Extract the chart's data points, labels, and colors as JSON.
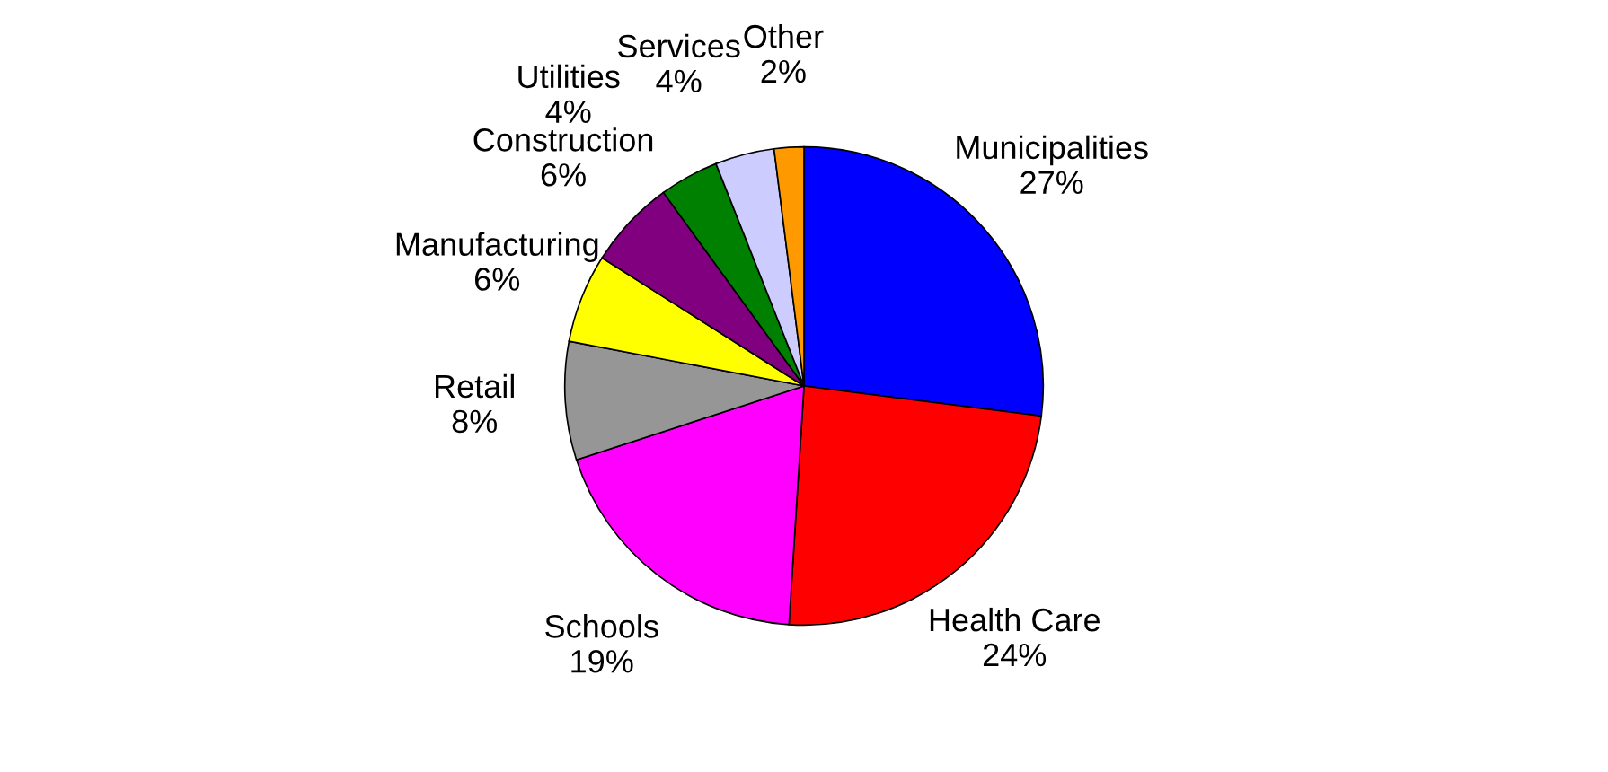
{
  "chart_data": {
    "type": "pie",
    "categories": [
      "Municipalities",
      "Health Care",
      "Schools",
      "Retail",
      "Manufacturing",
      "Construction",
      "Utilities",
      "Services",
      "Other"
    ],
    "values": [
      27,
      24,
      19,
      8,
      6,
      6,
      4,
      4,
      2
    ],
    "value_labels": [
      "27%",
      "24%",
      "19%",
      "8%",
      "6%",
      "6%",
      "4%",
      "4%",
      "2%"
    ],
    "colors": [
      "#0000ff",
      "#ff0000",
      "#ff00ff",
      "#969696",
      "#ffff00",
      "#800080",
      "#008000",
      "#ccccff",
      "#ff9900"
    ],
    "legend": false
  }
}
